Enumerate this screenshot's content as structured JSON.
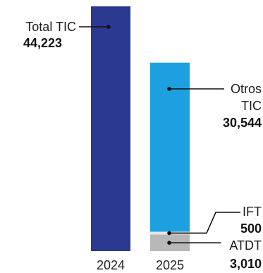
{
  "chart_data": {
    "type": "bar",
    "stacked": true,
    "categories": [
      "2024",
      "2025"
    ],
    "ylim": [
      0,
      44223
    ],
    "grid": false,
    "legend": "none",
    "title": "",
    "xlabel": "",
    "ylabel": "",
    "bars": [
      {
        "category": "2024",
        "segments": [
          {
            "label": "Total TIC",
            "value": 44223,
            "value_text": "44,223",
            "color": "#2b3990"
          }
        ]
      },
      {
        "category": "2025",
        "segments": [
          {
            "label": "ATDT",
            "value": 3010,
            "value_text": "3,010",
            "color": "#b8b8b8"
          },
          {
            "label": "IFT",
            "value": 500,
            "value_text": "500",
            "color": "#e6e6e6"
          },
          {
            "label": "Otros TIC",
            "label_lines": [
              "Otros",
              "TIC"
            ],
            "value": 30544,
            "value_text": "30,544",
            "color": "#1ea0e0"
          }
        ]
      }
    ]
  }
}
